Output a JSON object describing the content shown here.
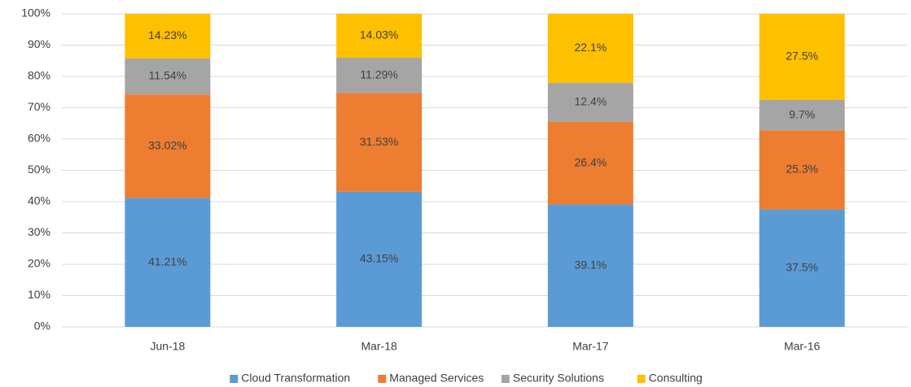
{
  "chart_data": {
    "type": "bar",
    "stacked": true,
    "categories": [
      "Jun-18",
      "Mar-18",
      "Mar-17",
      "Mar-16"
    ],
    "series": [
      {
        "name": "Cloud Transformation",
        "color": "#5b9bd5",
        "values": [
          41.21,
          43.15,
          39.1,
          37.5
        ],
        "value_labels": [
          "41.21%",
          "43.15%",
          "39.1%",
          "37.5%"
        ]
      },
      {
        "name": "Managed Services",
        "color": "#ed7d31",
        "values": [
          33.02,
          31.53,
          26.4,
          25.3
        ],
        "value_labels": [
          "33.02%",
          "31.53%",
          "26.4%",
          "25.3%"
        ]
      },
      {
        "name": "Security Solutions",
        "color": "#a5a5a5",
        "values": [
          11.54,
          11.29,
          12.4,
          9.7
        ],
        "value_labels": [
          "11.54%",
          "11.29%",
          "12.4%",
          "9.7%"
        ]
      },
      {
        "name": "Consulting",
        "color": "#ffc000",
        "values": [
          14.23,
          14.03,
          22.1,
          27.5
        ],
        "value_labels": [
          "14.23%",
          "14.03%",
          "22.1%",
          "27.5%"
        ]
      }
    ],
    "ylim": [
      0,
      100
    ],
    "yticks": [
      {
        "value": 0,
        "label": "0%"
      },
      {
        "value": 10,
        "label": "10%"
      },
      {
        "value": 20,
        "label": "20%"
      },
      {
        "value": 30,
        "label": "30%"
      },
      {
        "value": 40,
        "label": "40%"
      },
      {
        "value": 50,
        "label": "50%"
      },
      {
        "value": 60,
        "label": "60%"
      },
      {
        "value": 70,
        "label": "70%"
      },
      {
        "value": 80,
        "label": "80%"
      },
      {
        "value": 90,
        "label": "90%"
      },
      {
        "value": 100,
        "label": "100%"
      }
    ],
    "grid": true,
    "legend": "bottom"
  }
}
